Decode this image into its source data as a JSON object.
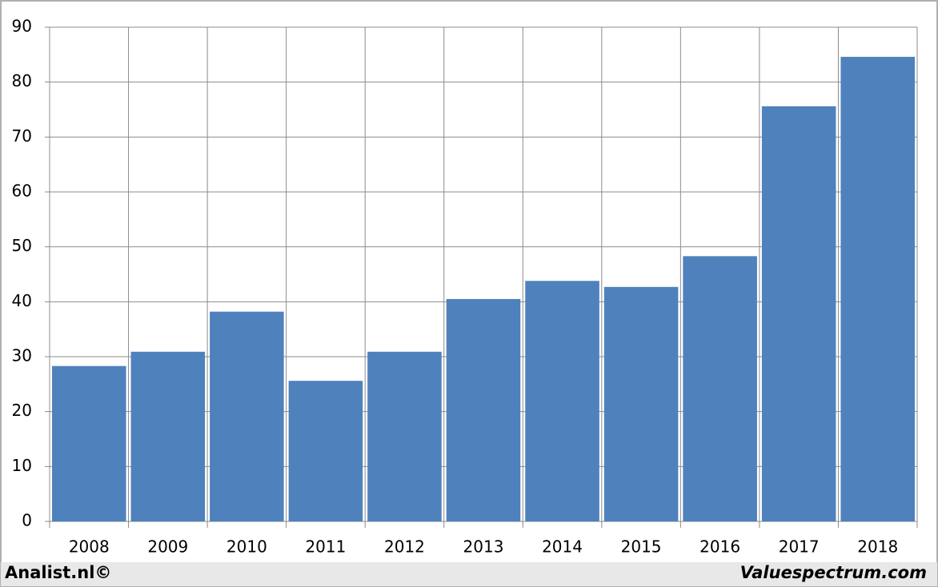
{
  "chart_data": {
    "type": "bar",
    "categories": [
      "2008",
      "2009",
      "2010",
      "2011",
      "2012",
      "2013",
      "2014",
      "2015",
      "2016",
      "2017",
      "2018"
    ],
    "values": [
      28.3,
      30.9,
      38.2,
      25.6,
      30.9,
      40.5,
      43.8,
      42.7,
      48.3,
      75.6,
      84.6
    ],
    "color": "#4f81bd",
    "ylim": [
      0,
      90
    ],
    "yticks": [
      0,
      10,
      20,
      30,
      40,
      50,
      60,
      70,
      80,
      90
    ],
    "grid": true,
    "footer_left": "Analist.nl©",
    "footer_right": "Valuespectrum.com"
  }
}
